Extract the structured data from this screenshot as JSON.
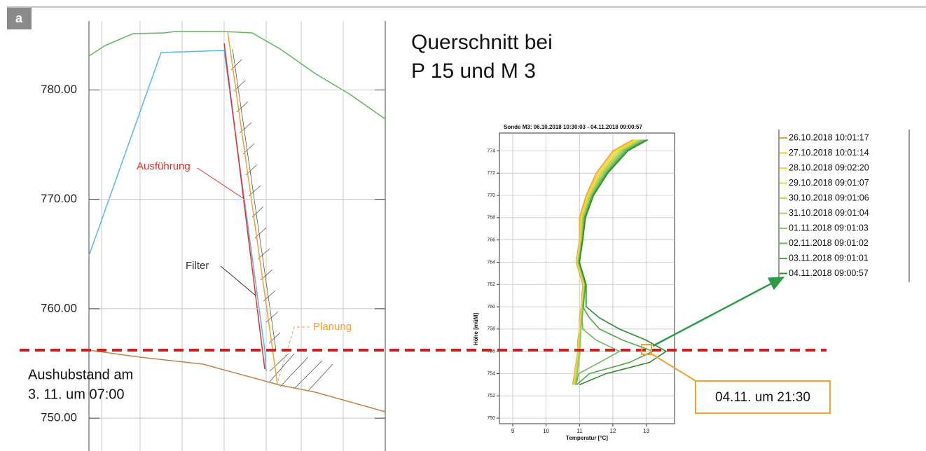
{
  "panel_label": "a",
  "title": [
    "Querschnitt bei",
    "P 15 und M 3"
  ],
  "chart_data": [
    {
      "type": "profile",
      "ylim": [
        747,
        786.3
      ],
      "yticks": [
        {
          "value": 750,
          "label": "750.00"
        },
        {
          "value": 760,
          "label": "760.00"
        },
        {
          "value": 770,
          "label": "770.00"
        },
        {
          "value": 780,
          "label": "780.00"
        }
      ],
      "grid": true,
      "annotations": [
        "Ausführung",
        "Filter",
        "Planung"
      ],
      "excavation_label": [
        "Aushubstand am",
        "3. 11. um 07:00"
      ]
    },
    {
      "type": "line",
      "title": "Sonde M3: 06.10.2018 10:30:03 - 04.11.2018 09:00:57",
      "x_label": "Temperatur [°C]",
      "y_label": "Höhe [müM]",
      "xlim": [
        8.6,
        13.85
      ],
      "ylim": [
        749.5,
        775.6
      ],
      "xticks": [
        9,
        10,
        11,
        12,
        13
      ],
      "yticks": [
        750,
        752,
        754,
        756,
        758,
        760,
        762,
        764,
        766,
        768,
        770,
        772,
        774
      ],
      "grid": true,
      "annotation": "04.11. um 21:30",
      "series": [
        {
          "name": "26.10.2018 10:01:17",
          "color": "#f0a030",
          "x": [
            10.8,
            10.85,
            10.9,
            10.95,
            10.95,
            11.0,
            11.0,
            11.05,
            11.1,
            10.9,
            11.0,
            11.0,
            11.2,
            11.5,
            12.0,
            12.6
          ],
          "values": [
            753,
            754,
            755,
            756,
            757,
            758,
            759,
            760,
            762,
            764,
            766,
            768,
            770,
            772,
            774,
            775
          ]
        },
        {
          "name": "27.10.2018 10:01:14",
          "color": "#f5c820",
          "x": [
            10.82,
            10.87,
            10.92,
            10.96,
            10.97,
            11.0,
            11.02,
            11.06,
            11.12,
            10.92,
            11.02,
            11.03,
            11.23,
            11.55,
            12.05,
            12.65
          ],
          "values": [
            753,
            754,
            755,
            756,
            757,
            758,
            759,
            760,
            762,
            764,
            766,
            768,
            770,
            772,
            774,
            775
          ]
        },
        {
          "name": "28.10.2018 09:02:20",
          "color": "#f2e030",
          "x": [
            10.84,
            10.88,
            10.93,
            10.97,
            10.98,
            11.01,
            11.03,
            11.07,
            11.13,
            10.93,
            11.03,
            11.05,
            11.26,
            11.6,
            12.1,
            12.7
          ],
          "values": [
            753,
            754,
            755,
            756,
            757,
            758,
            759,
            760,
            762,
            764,
            766,
            768,
            770,
            772,
            774,
            775
          ]
        },
        {
          "name": "29.10.2018 09:01:07",
          "color": "#dce040",
          "x": [
            10.85,
            10.9,
            10.94,
            10.98,
            10.99,
            11.02,
            11.04,
            11.08,
            11.14,
            10.94,
            11.04,
            11.07,
            11.28,
            11.63,
            12.15,
            12.75
          ],
          "values": [
            753,
            754,
            755,
            756,
            757,
            758,
            759,
            760,
            762,
            764,
            766,
            768,
            770,
            772,
            774,
            775
          ]
        },
        {
          "name": "30.10.2018 09:01:06",
          "color": "#c4d850",
          "x": [
            10.86,
            10.91,
            10.95,
            10.99,
            11.0,
            11.03,
            11.05,
            11.09,
            11.15,
            10.95,
            11.05,
            11.09,
            11.3,
            11.66,
            12.2,
            12.8
          ],
          "values": [
            753,
            754,
            755,
            756,
            757,
            758,
            759,
            760,
            762,
            764,
            766,
            768,
            770,
            772,
            774,
            775
          ]
        },
        {
          "name": "31.10.2018 09:01:04",
          "color": "#a8d060",
          "x": [
            10.87,
            10.92,
            10.96,
            11.0,
            11.01,
            11.04,
            11.06,
            11.1,
            11.16,
            10.96,
            11.06,
            11.1,
            11.32,
            11.7,
            12.25,
            12.85
          ],
          "values": [
            753,
            754,
            755,
            756,
            757,
            758,
            759,
            760,
            762,
            764,
            766,
            768,
            770,
            772,
            774,
            775
          ]
        },
        {
          "name": "01.11.2018 09:01:03",
          "color": "#8cc870",
          "x": [
            10.88,
            10.94,
            10.98,
            11.02,
            11.03,
            11.05,
            11.07,
            11.11,
            11.17,
            10.97,
            11.07,
            11.12,
            11.35,
            11.74,
            12.3,
            12.9
          ],
          "values": [
            753,
            754,
            755,
            756,
            757,
            758,
            759,
            760,
            762,
            764,
            766,
            768,
            770,
            772,
            774,
            775
          ]
        },
        {
          "name": "02.11.2018 09:01:02",
          "color": "#6cb860",
          "x": [
            10.9,
            10.98,
            11.6,
            12.2,
            11.5,
            11.1,
            11.08,
            11.12,
            11.18,
            10.98,
            11.08,
            11.14,
            11.38,
            11.78,
            12.35,
            12.95
          ],
          "values": [
            753,
            754,
            755,
            756,
            757,
            758,
            759,
            760,
            762,
            764,
            766,
            768,
            770,
            772,
            774,
            775
          ]
        },
        {
          "name": "03.11.2018 09:01:01",
          "color": "#4ea848",
          "x": [
            10.92,
            11.3,
            12.5,
            13.2,
            12.3,
            11.6,
            11.3,
            11.1,
            11.19,
            10.99,
            11.09,
            11.16,
            11.4,
            11.82,
            12.4,
            13.0
          ],
          "values": [
            753,
            754,
            755,
            756,
            757,
            758,
            759,
            760,
            762,
            764,
            766,
            768,
            770,
            772,
            774,
            775
          ]
        },
        {
          "name": "04.11.2018 09:00:57",
          "color": "#2e8b2e",
          "x": [
            11.0,
            11.8,
            13.1,
            13.6,
            13.0,
            12.2,
            11.6,
            11.2,
            11.2,
            11.0,
            11.1,
            11.18,
            11.42,
            11.85,
            12.45,
            13.05
          ],
          "values": [
            753,
            754,
            755,
            756,
            757,
            758,
            759,
            760,
            762,
            764,
            766,
            768,
            770,
            772,
            774,
            775
          ]
        }
      ]
    }
  ]
}
